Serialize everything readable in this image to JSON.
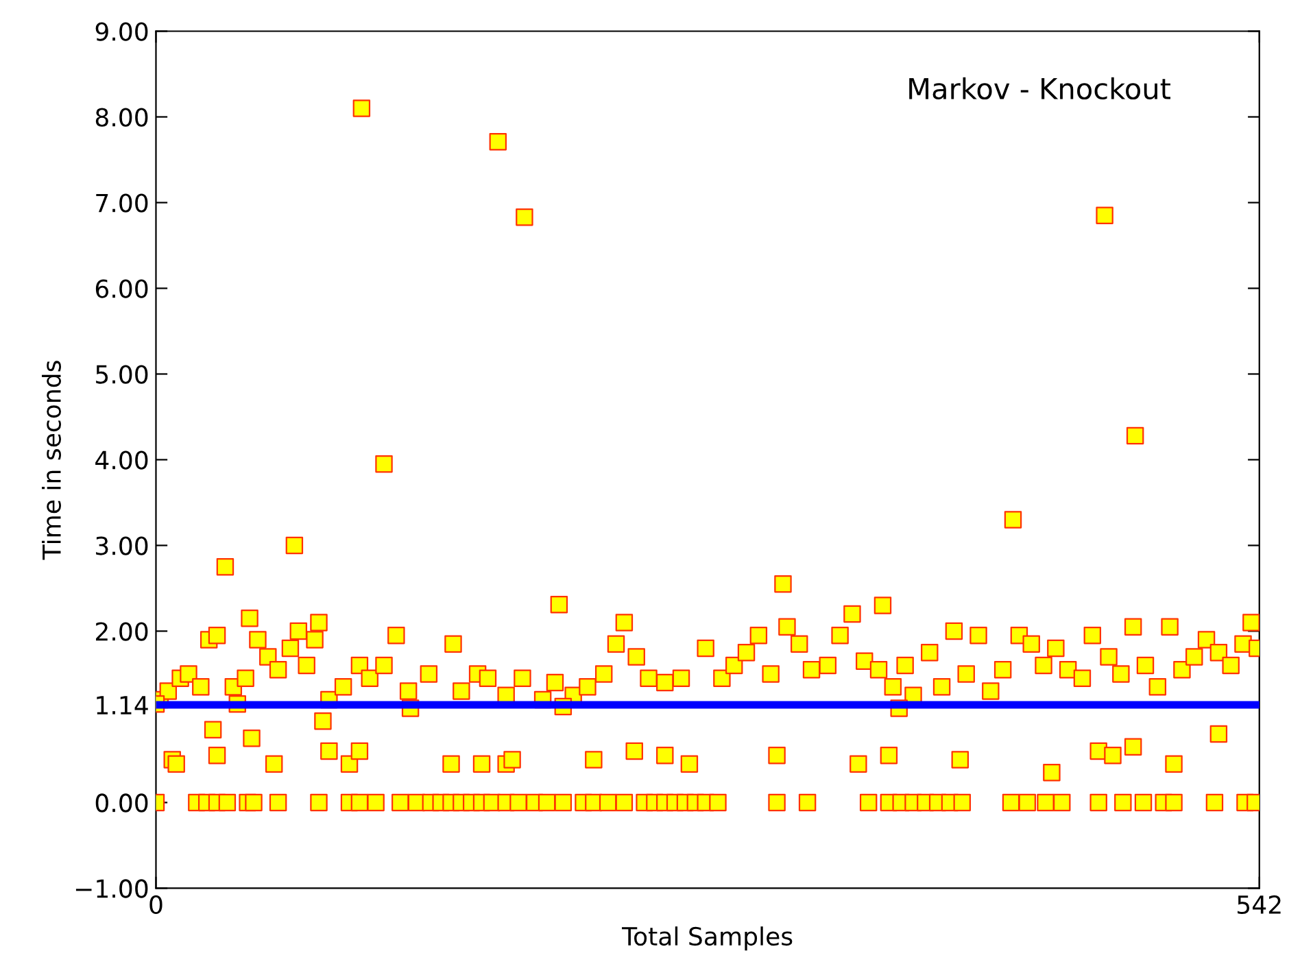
{
  "chart_data": {
    "type": "scatter",
    "xlabel": "Total Samples",
    "ylabel": "Time in seconds",
    "annotations": [
      "Markov - Knockout"
    ],
    "xlim": [
      0,
      542
    ],
    "xticks": [
      0,
      542
    ],
    "ylim": [
      -1,
      9
    ],
    "yticks": [
      {
        "value": -1,
        "label": "−1.00"
      },
      {
        "value": 0,
        "label": "0.00"
      },
      {
        "value": 1.14,
        "label": "1.14"
      },
      {
        "value": 2,
        "label": "2.00"
      },
      {
        "value": 3,
        "label": "3.00"
      },
      {
        "value": 4,
        "label": "4.00"
      },
      {
        "value": 5,
        "label": "5.00"
      },
      {
        "value": 6,
        "label": "6.00"
      },
      {
        "value": 7,
        "label": "7.00"
      },
      {
        "value": 8,
        "label": "8.00"
      },
      {
        "value": 9,
        "label": "9.00"
      }
    ],
    "marker": "square",
    "grid": false,
    "legend": false,
    "ref_lines": [
      {
        "axis": "y",
        "value": 1.14,
        "color": "#0000ff",
        "line_style": "solid"
      }
    ],
    "series": [
      {
        "color": "#ffff00",
        "x": [
          101,
          168,
          181,
          112,
          68,
          34,
          198,
          308,
          357,
          421,
          466,
          481,
          522,
          0,
          20,
          25,
          30,
          35,
          45,
          48,
          60,
          80,
          95,
          100,
          108,
          120,
          128,
          135,
          140,
          145,
          150,
          155,
          160,
          165,
          172,
          178,
          186,
          192,
          200,
          210,
          215,
          222,
          230,
          240,
          245,
          250,
          255,
          260,
          265,
          270,
          276,
          305,
          320,
          350,
          360,
          366,
          372,
          378,
          384,
          390,
          396,
          420,
          428,
          437,
          445,
          463,
          475,
          485,
          495,
          500,
          520,
          535,
          540,
          8,
          10,
          30,
          58,
          85,
          95,
          100,
          145,
          160,
          172,
          175,
          215,
          235,
          250,
          262,
          305,
          345,
          360,
          395,
          440,
          463,
          470,
          480,
          500,
          28,
          47,
          82,
          2,
          6,
          12,
          16,
          22,
          26,
          30,
          38,
          44,
          46,
          50,
          55,
          60,
          66,
          70,
          74,
          78,
          80,
          85,
          92,
          100,
          105,
          112,
          118,
          124,
          134,
          146,
          150,
          158,
          163,
          172,
          180,
          190,
          196,
          205,
          212,
          220,
          226,
          230,
          236,
          242,
          250,
          258,
          270,
          278,
          284,
          290,
          296,
          302,
          310,
          316,
          322,
          330,
          336,
          342,
          348,
          355,
          362,
          368,
          372,
          380,
          386,
          392,
          398,
          404,
          410,
          416,
          424,
          430,
          436,
          442,
          448,
          455,
          460,
          468,
          474,
          480,
          486,
          492,
          498,
          504,
          510,
          516,
          522,
          528,
          534,
          538,
          541,
          0,
          40,
          125,
          200,
          365
        ],
        "values": [
          8.1,
          7.71,
          6.83,
          3.95,
          3.0,
          2.75,
          2.31,
          2.55,
          2.3,
          3.3,
          6.85,
          4.28,
          0.8,
          0,
          0,
          0,
          0,
          0,
          0,
          0,
          0,
          0,
          0,
          0,
          0,
          0,
          0,
          0,
          0,
          0,
          0,
          0,
          0,
          0,
          0,
          0,
          0,
          0,
          0,
          0,
          0,
          0,
          0,
          0,
          0,
          0,
          0,
          0,
          0,
          0,
          0,
          0,
          0,
          0,
          0,
          0,
          0,
          0,
          0,
          0,
          0,
          0,
          0,
          0,
          0,
          0,
          0,
          0,
          0,
          0,
          0,
          0,
          0,
          0.5,
          0.45,
          0.55,
          0.45,
          0.6,
          0.45,
          0.6,
          0.45,
          0.45,
          0.45,
          0.5,
          0.5,
          0.6,
          0.55,
          0.45,
          0.55,
          0.45,
          0.55,
          0.5,
          0.35,
          0.6,
          0.55,
          0.65,
          0.45,
          0.85,
          0.75,
          0.95,
          1.2,
          1.3,
          1.45,
          1.5,
          1.35,
          1.9,
          1.95,
          1.35,
          1.45,
          2.15,
          1.9,
          1.7,
          1.55,
          1.8,
          2.0,
          1.6,
          1.9,
          2.1,
          1.2,
          1.35,
          1.6,
          1.45,
          1.6,
          1.95,
          1.3,
          1.5,
          1.85,
          1.3,
          1.5,
          1.45,
          1.25,
          1.45,
          1.2,
          1.4,
          1.25,
          1.35,
          1.5,
          1.85,
          2.1,
          1.7,
          1.45,
          1.4,
          1.45,
          1.8,
          1.45,
          1.6,
          1.75,
          1.95,
          1.5,
          2.05,
          1.85,
          1.55,
          1.6,
          1.95,
          2.2,
          1.65,
          1.55,
          1.35,
          1.6,
          1.25,
          1.75,
          1.35,
          2.0,
          1.5,
          1.95,
          1.3,
          1.55,
          1.95,
          1.85,
          1.6,
          1.8,
          1.55,
          1.45,
          1.95,
          1.7,
          1.5,
          2.05,
          1.6,
          1.35,
          2.05,
          1.55,
          1.7,
          1.9,
          1.75,
          1.6,
          1.85,
          2.1,
          1.8,
          1.15,
          1.15,
          1.1,
          1.12,
          1.1
        ]
      }
    ]
  }
}
